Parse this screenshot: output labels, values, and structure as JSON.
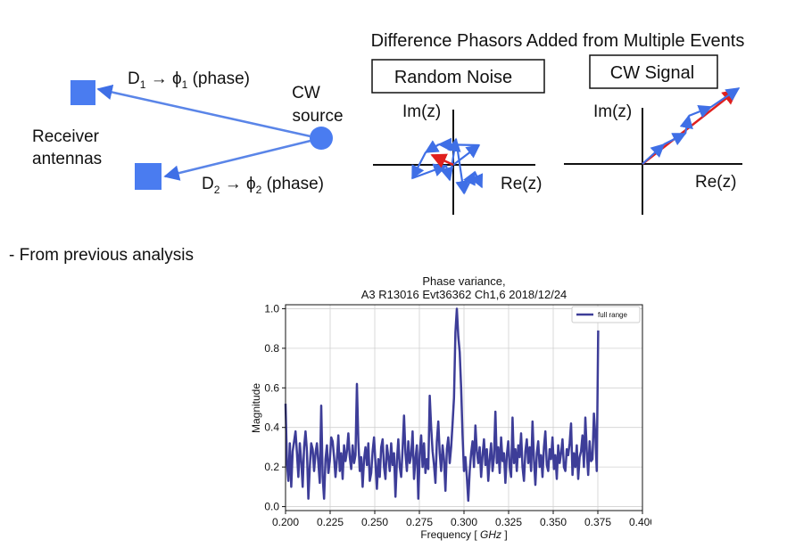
{
  "diagram": {
    "title": "Difference Phasors Added from Multiple Events",
    "labels": {
      "d1_prefix": "D",
      "d1_sub": "1",
      "d1_arrow": " → ϕ",
      "d1_sub2": "1",
      "d1_suffix": " (phase)",
      "d2_prefix": "D",
      "d2_sub": "2",
      "d2_arrow": " → ϕ",
      "d2_sub2": "2",
      "d2_suffix": " (phase)",
      "cw_line1": "CW",
      "cw_line2": "source",
      "receiver_line1": "Receiver",
      "receiver_line2": "antennas",
      "random_noise": "Random Noise",
      "cw_signal": "CW Signal",
      "im_axis": "Im(z)",
      "re_axis": "Re(z)"
    },
    "colors": {
      "antenna": "#4a7cf0",
      "ray": "#5a85e8",
      "phasor": "#3f6fe6",
      "result_phasor": "#e0201e"
    }
  },
  "note": "- From previous analysis",
  "chart_data": {
    "type": "line",
    "title": "Phase variance,",
    "subtitle": "A3 R13016 Evt36362 Ch1,6 2018/12/24",
    "xlabel_prefix": "Frequency [ ",
    "xlabel_unit": "GHz",
    "xlabel_suffix": " ]",
    "ylabel": "Magnitude",
    "xlim": [
      0.2,
      0.4
    ],
    "ylim": [
      -0.02,
      1.02
    ],
    "xticks": [
      0.2,
      0.225,
      0.25,
      0.275,
      0.3,
      0.325,
      0.35,
      0.375,
      0.4
    ],
    "xtick_labels": [
      "0.200",
      "0.225",
      "0.250",
      "0.275",
      "0.300",
      "0.325",
      "0.350",
      "0.375",
      "0.400"
    ],
    "yticks": [
      0.0,
      0.2,
      0.4,
      0.6,
      0.8,
      1.0
    ],
    "ytick_labels": [
      "0.0",
      "0.2",
      "0.4",
      "0.6",
      "0.8",
      "1.0"
    ],
    "grid": true,
    "legend_position": "top-right",
    "series": [
      {
        "name": "full range",
        "color": "#3d3d98",
        "x_start": 0.2,
        "x_step": 0.0008,
        "values": [
          0.52,
          0.22,
          0.13,
          0.32,
          0.1,
          0.28,
          0.33,
          0.38,
          0.27,
          0.15,
          0.32,
          0.23,
          0.1,
          0.3,
          0.38,
          0.28,
          0.04,
          0.2,
          0.32,
          0.29,
          0.18,
          0.27,
          0.32,
          0.22,
          0.12,
          0.51,
          0.15,
          0.04,
          0.24,
          0.31,
          0.17,
          0.23,
          0.35,
          0.33,
          0.25,
          0.15,
          0.24,
          0.36,
          0.18,
          0.27,
          0.14,
          0.31,
          0.23,
          0.28,
          0.37,
          0.25,
          0.19,
          0.31,
          0.22,
          0.26,
          0.62,
          0.33,
          0.18,
          0.25,
          0.1,
          0.24,
          0.3,
          0.21,
          0.32,
          0.13,
          0.17,
          0.28,
          0.35,
          0.22,
          0.09,
          0.24,
          0.15,
          0.3,
          0.34,
          0.2,
          0.14,
          0.31,
          0.25,
          0.18,
          0.32,
          0.21,
          0.27,
          0.05,
          0.23,
          0.34,
          0.2,
          0.15,
          0.29,
          0.46,
          0.27,
          0.18,
          0.33,
          0.22,
          0.26,
          0.38,
          0.14,
          0.24,
          0.31,
          0.04,
          0.27,
          0.36,
          0.2,
          0.32,
          0.17,
          0.24,
          0.19,
          0.56,
          0.4,
          0.28,
          0.21,
          0.12,
          0.33,
          0.43,
          0.27,
          0.18,
          0.31,
          0.24,
          0.08,
          0.29,
          0.35,
          0.22,
          0.3,
          0.42,
          0.55,
          0.88,
          1.0,
          0.86,
          0.78,
          0.6,
          0.36,
          0.18,
          0.25,
          0.15,
          0.03,
          0.18,
          0.27,
          0.33,
          0.2,
          0.41,
          0.28,
          0.22,
          0.3,
          0.15,
          0.26,
          0.34,
          0.21,
          0.29,
          0.13,
          0.24,
          0.32,
          0.18,
          0.25,
          0.48,
          0.22,
          0.3,
          0.17,
          0.35,
          0.23,
          0.27,
          0.12,
          0.26,
          0.33,
          0.2,
          0.15,
          0.45,
          0.22,
          0.29,
          0.18,
          0.31,
          0.25,
          0.37,
          0.2,
          0.13,
          0.28,
          0.34,
          0.22,
          0.3,
          0.18,
          0.43,
          0.24,
          0.11,
          0.27,
          0.33,
          0.2,
          0.26,
          0.15,
          0.3,
          0.38,
          0.21,
          0.18,
          0.29,
          0.24,
          0.35,
          0.19,
          0.26,
          0.14,
          0.31,
          0.22,
          0.27,
          0.34,
          0.2,
          0.18,
          0.29,
          0.26,
          0.32,
          0.42,
          0.16,
          0.27,
          0.2,
          0.31,
          0.14,
          0.25,
          0.28,
          0.36,
          0.2,
          0.45,
          0.28,
          0.16,
          0.33,
          0.23,
          0.24,
          0.47,
          0.36,
          0.18,
          0.89
        ]
      }
    ]
  }
}
